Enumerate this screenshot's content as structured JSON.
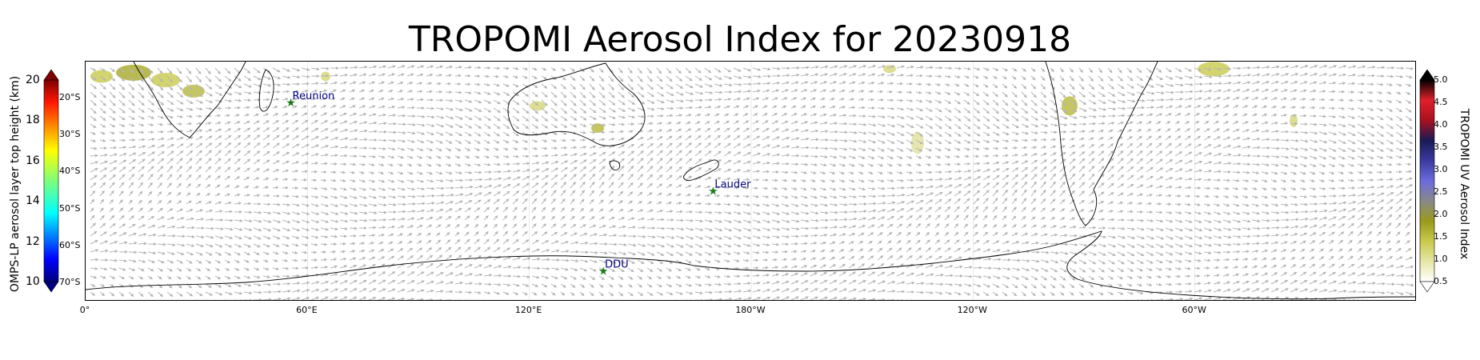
{
  "title": "TROPOMI Aerosol Index for 20230918",
  "left_colorbar": {
    "label": "OMPS-LP aerosol layer top height (km)",
    "ticks": [
      "20",
      "18",
      "16",
      "14",
      "12",
      "10"
    ],
    "range": [
      10,
      20
    ],
    "colormap": "jet"
  },
  "right_colorbar": {
    "label": "TROPOMI UV Aerosol Index",
    "ticks": [
      "5.0",
      "4.5",
      "4.0",
      "3.5",
      "3.0",
      "2.5",
      "2.0",
      "1.5",
      "1.0",
      "0.5"
    ],
    "range": [
      0.5,
      5.0
    ],
    "colors": [
      "#ffffff",
      "#e6e6a6",
      "#c9c94a",
      "#9a9a1a",
      "#888888",
      "#6b6bdd",
      "#3a3aa0",
      "#1a1a55",
      "#aa1020",
      "#e0202a",
      "#000000"
    ]
  },
  "map": {
    "projection": "PlateCarree",
    "central_longitude": 180,
    "lat_range": [
      -75,
      -10
    ],
    "lon_range": [
      0,
      360
    ],
    "lat_labels": [
      "20°S",
      "30°S",
      "40°S",
      "50°S",
      "60°S",
      "70°S"
    ],
    "lon_labels": [
      "0°",
      "60°E",
      "120°E",
      "180°W",
      "120°W",
      "60°W"
    ],
    "stations": [
      {
        "name": "Reunion",
        "lon": 55.5,
        "lat": -21.1
      },
      {
        "name": "Lauder",
        "lon": 169.7,
        "lat": -45.0
      },
      {
        "name": "DDU",
        "lon": 140.0,
        "lat": -66.7
      }
    ],
    "station_color": "#1a7a1a",
    "station_label_color": "#000080",
    "wind_vector_color": "#b5b5b5",
    "coastline_color": "#000000"
  }
}
